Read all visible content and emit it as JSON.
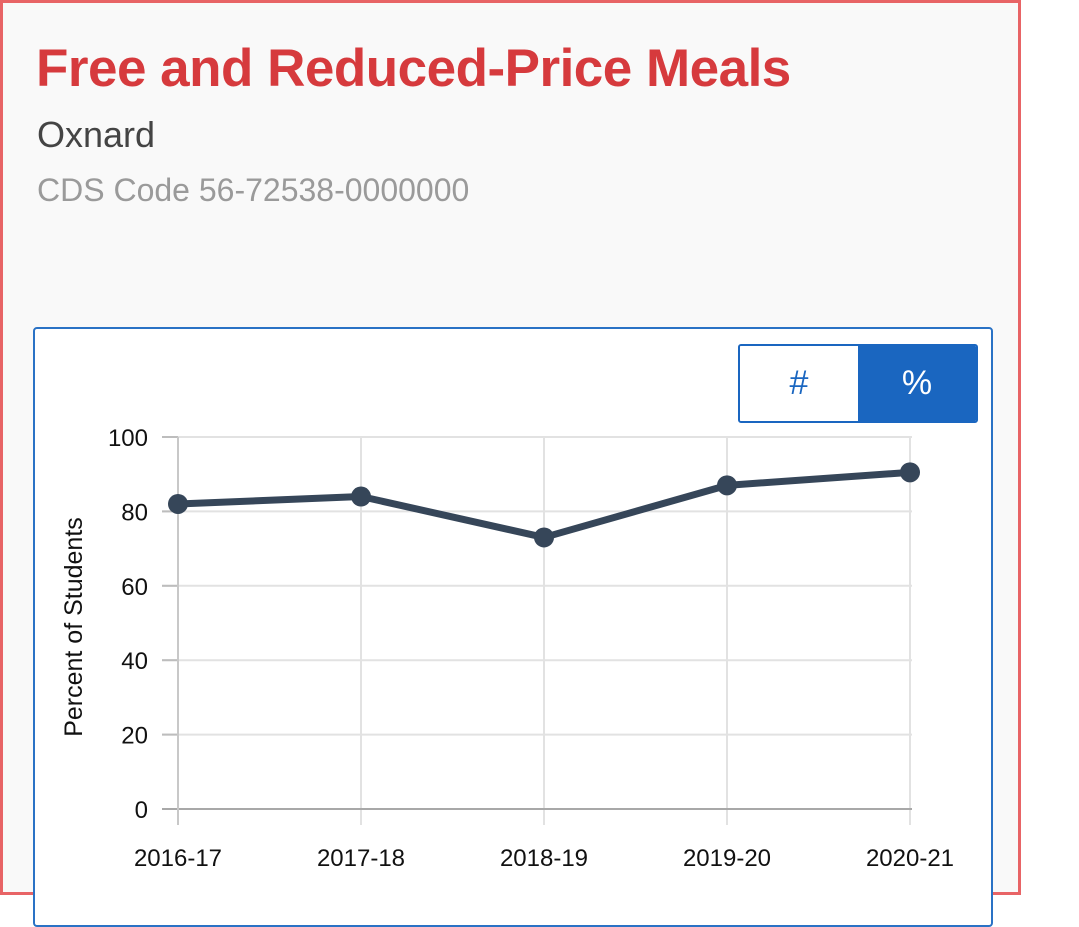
{
  "header": {
    "title": "Free and Reduced-Price Meals",
    "district": "Oxnard",
    "cds_code": "CDS Code 56-72538-0000000"
  },
  "toggle": {
    "count_label": "#",
    "percent_label": "%",
    "selected": "percent"
  },
  "colors": {
    "title": "#d63a3d",
    "accent": "#1a66c0",
    "card_border": "#e86466",
    "series_line": "#364659"
  },
  "chart_data": {
    "type": "line",
    "title": "Free and Reduced-Price Meals",
    "xlabel": "",
    "ylabel": "Percent of Students",
    "categories": [
      "2016-17",
      "2017-18",
      "2018-19",
      "2019-20",
      "2020-21"
    ],
    "series": [
      {
        "name": "Percent of Students",
        "values": [
          82,
          84,
          73,
          87,
          90.5
        ]
      }
    ],
    "ylim": [
      0,
      100
    ],
    "yticks": [
      0,
      20,
      40,
      60,
      80,
      100
    ],
    "grid": true,
    "legend": "none"
  }
}
